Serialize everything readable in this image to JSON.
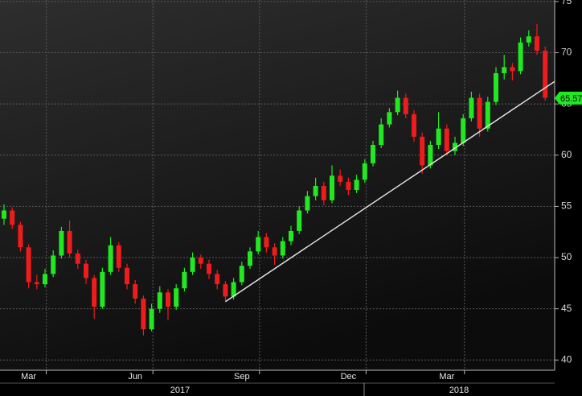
{
  "chart_data": {
    "type": "candlestick",
    "categories": [
      null,
      null,
      null,
      "Mar",
      null,
      null,
      null,
      null,
      null,
      null,
      null,
      null,
      null,
      null,
      null,
      null,
      "Jun",
      null,
      null,
      null,
      null,
      null,
      null,
      null,
      null,
      null,
      null,
      null,
      null,
      "Sep",
      null,
      null,
      null,
      null,
      null,
      null,
      null,
      null,
      null,
      null,
      null,
      null,
      "Dec",
      null,
      null,
      null,
      null,
      null,
      null,
      null,
      null,
      null,
      null,
      null,
      "Mar",
      null,
      null,
      null,
      null,
      null,
      null,
      null,
      null,
      null,
      null,
      null,
      null
    ],
    "year_labels": [
      "2017",
      "2018"
    ],
    "open": [
      53.8,
      54.6,
      53.2,
      51,
      47.6,
      47.4,
      48.4,
      50.2,
      52.6,
      50.4,
      49.4,
      48,
      45.2,
      48.6,
      51.2,
      49,
      47.4,
      46,
      43,
      45,
      46.6,
      45.2,
      47,
      48.6,
      50,
      49.4,
      48.4,
      47.4,
      46.2,
      47.6,
      49.2,
      50.6,
      52,
      51,
      50.2,
      51.6,
      52.6,
      54.6,
      56,
      57,
      55.6,
      58,
      57.4,
      56.6,
      57.6,
      59.2,
      61,
      63,
      64.2,
      65.6,
      64,
      61.8,
      59,
      61,
      62.6,
      60.4,
      61.2,
      63.6,
      65.6,
      62.6,
      65.2,
      68,
      68.6,
      68.2,
      71,
      71.6,
      70.2
    ],
    "high": [
      55.2,
      54.9,
      53.5,
      51.3,
      48.3,
      48.9,
      50.7,
      53,
      53.6,
      50.8,
      49.8,
      48.3,
      49,
      52,
      51.5,
      49.4,
      47.8,
      46.3,
      45.5,
      47.2,
      46.9,
      47.4,
      49,
      50.5,
      50.3,
      49.8,
      48.8,
      47.7,
      48,
      49.6,
      51,
      52.6,
      52.4,
      51.4,
      52,
      53.1,
      55,
      56.5,
      57.8,
      57.4,
      59,
      58.6,
      57.8,
      58.1,
      59.6,
      61.4,
      63.6,
      64.6,
      66.3,
      66,
      64.4,
      62.2,
      61.4,
      64.2,
      63,
      61.8,
      64,
      66.2,
      66,
      65.7,
      68.6,
      69.8,
      69,
      71.5,
      72.2,
      72.8,
      70.6
    ],
    "low": [
      53.2,
      52.8,
      50.6,
      47,
      46.9,
      47.1,
      48.1,
      49.9,
      50,
      48.9,
      47.4,
      44,
      45,
      48.3,
      48.6,
      46.9,
      45.5,
      42.4,
      42.8,
      44.6,
      43.9,
      44.9,
      46.7,
      48.3,
      48.9,
      47.9,
      46.9,
      45.8,
      45.9,
      47.3,
      48.9,
      50.3,
      50.5,
      49.3,
      49.9,
      51.2,
      52.3,
      54.3,
      55.6,
      55.1,
      55.3,
      57,
      56.1,
      56.3,
      57.3,
      58.9,
      60.7,
      62.7,
      63.9,
      63.6,
      61.3,
      58.2,
      58.7,
      60.6,
      60,
      60,
      60.9,
      63.3,
      61.8,
      62.3,
      64.9,
      67.4,
      67.3,
      67.9,
      70.6,
      69.8,
      65.3
    ],
    "close": [
      54.6,
      53.2,
      51,
      47.6,
      47.4,
      48.4,
      50.2,
      52.6,
      50.4,
      49.4,
      48,
      45.2,
      48.6,
      51.2,
      49,
      47.4,
      46,
      43,
      45,
      46.6,
      45.2,
      47,
      48.6,
      50,
      49.4,
      48.4,
      47.4,
      46.2,
      47.6,
      49.2,
      50.6,
      52,
      51,
      50.2,
      51.6,
      52.6,
      54.6,
      56,
      57,
      55.6,
      58,
      57.4,
      56.6,
      57.6,
      59.2,
      61,
      63,
      64.2,
      65.6,
      64,
      61.8,
      59,
      61,
      62.6,
      60.4,
      61.2,
      63.6,
      65.6,
      62.6,
      65.2,
      68,
      68.6,
      68.2,
      71,
      71.6,
      70.2,
      65.6
    ],
    "up_color": "#22e822",
    "down_color": "#ee1c1c",
    "trendline": [
      45.7,
      67.2
    ],
    "last_price": 65.57,
    "last_price_color": "#22e822",
    "ylim": [
      39,
      75.15
    ],
    "yticks": [
      40,
      45,
      50,
      55,
      60,
      65,
      70,
      75
    ],
    "grid": true
  }
}
